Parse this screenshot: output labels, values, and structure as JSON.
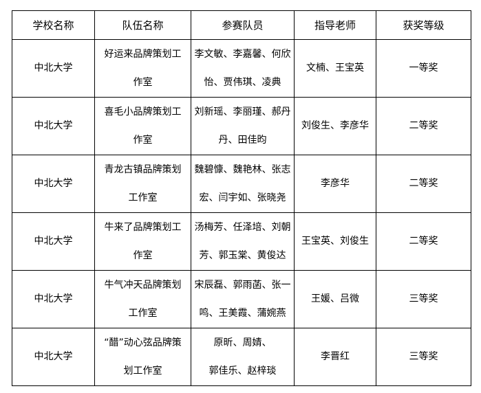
{
  "headers": [
    "学校名称",
    "队伍名称",
    "参赛队员",
    "指导老师",
    "获奖等级"
  ],
  "rows": [
    {
      "school": "中北大学",
      "team": [
        "好运来品牌策划工",
        "作室"
      ],
      "members": [
        "李文敏、李嘉馨、何欣",
        "怡、贾伟琪、凌典"
      ],
      "advisor": "文楠、王宝英",
      "award": "一等奖"
    },
    {
      "school": "中北大学",
      "team": [
        "喜毛小品牌策划工",
        "作室"
      ],
      "members": [
        "刘新瑶、李丽瑾、郝丹",
        "丹、田佳昀"
      ],
      "advisor": "刘俊生、李彦华",
      "award": "二等奖"
    },
    {
      "school": "中北大学",
      "team": [
        "青龙古镇品牌策划",
        "工作室"
      ],
      "members": [
        "魏碧慷、魏艳林、张志",
        "宏、闫宇如、张晓尧"
      ],
      "advisor": "李彦华",
      "award": "二等奖"
    },
    {
      "school": "中北大学",
      "team": [
        "牛来了品牌策划工",
        "作室"
      ],
      "members": [
        "汤梅芳、任泽培、刘朝",
        "芳、郭玉棠、黄俊达"
      ],
      "advisor": "王宝英、刘俊生",
      "award": "二等奖"
    },
    {
      "school": "中北大学",
      "team": [
        "牛气冲天品牌策划",
        "工作室"
      ],
      "members": [
        "宋辰磊、郭雨菡、张一",
        "鸣、王美霞、蒲婉燕"
      ],
      "advisor": "王媛、吕微",
      "award": "三等奖"
    },
    {
      "school": "中北大学",
      "team": [
        "“醋”动心弦品牌策",
        "划工作室"
      ],
      "members": [
        "原昕、周婧、",
        "郭佳乐、赵梓琰"
      ],
      "advisor": "李晋红",
      "award": "三等奖"
    }
  ]
}
